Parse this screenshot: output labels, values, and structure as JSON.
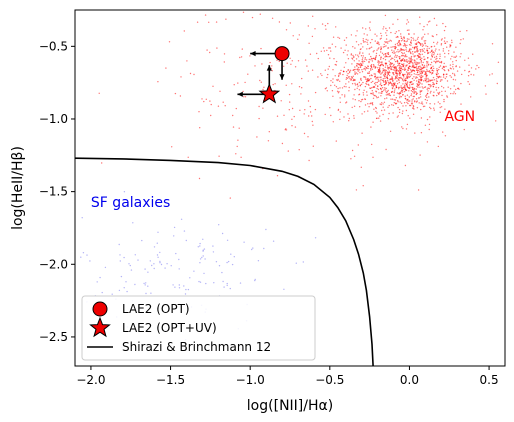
{
  "chart_data": {
    "type": "scatter",
    "xlabel": "log([NII]/Hα)",
    "ylabel": "log(HeII/Hβ)",
    "xlim": [
      -2.1,
      0.6
    ],
    "ylim": [
      -2.7,
      -0.25
    ],
    "xticks": [
      -2.0,
      -1.5,
      -1.0,
      -0.5,
      0.0,
      0.5
    ],
    "xtick_labels": [
      "−2.0",
      "−1.5",
      "−1.0",
      "−0.5",
      "0.0",
      "0.5"
    ],
    "yticks": [
      -2.5,
      -2.0,
      -1.5,
      -1.0,
      -0.5
    ],
    "ytick_labels": [
      "−2.5",
      "−2.0",
      "−1.5",
      "−1.0",
      "−0.5"
    ],
    "grid": false,
    "legend_position": "lower-left",
    "annotations": [
      {
        "text": "AGN",
        "x": 0.22,
        "y": -0.98,
        "color": "#ff0000"
      },
      {
        "text": "SF galaxies",
        "x": -2.0,
        "y": -1.57,
        "color": "#0000ee"
      }
    ],
    "populations": [
      {
        "region": "AGN",
        "color": "#ff0000",
        "center": [
          -0.05,
          -0.67
        ],
        "spread": [
          0.19,
          0.14
        ],
        "count": 1500
      },
      {
        "region": "AGN-halo",
        "color": "#ff0000",
        "center": [
          -0.6,
          -0.75
        ],
        "spread": [
          0.45,
          0.3
        ],
        "count": 300
      },
      {
        "region": "SF",
        "color": "#7777ee",
        "center": [
          -1.45,
          -2.05
        ],
        "spread": [
          0.3,
          0.2
        ],
        "count": 140
      }
    ],
    "series": [
      {
        "name": "LAE2 (OPT)",
        "marker": "circle",
        "color": "#ee0000",
        "points": [
          {
            "x": -0.8,
            "y": -0.55
          }
        ]
      },
      {
        "name": "LAE2 (OPT+UV)",
        "marker": "star",
        "color": "#ee0000",
        "points": [
          {
            "x": -0.88,
            "y": -0.83
          }
        ]
      },
      {
        "name": "Shirazi & Brinchmann 12",
        "marker": "line",
        "color": "#000000"
      }
    ],
    "limit_arrows": [
      {
        "x": -0.8,
        "y": -0.55,
        "dx": -0.2,
        "dy": 0
      },
      {
        "x": -0.8,
        "y": -0.55,
        "dx": 0,
        "dy": -0.18
      },
      {
        "x": -0.88,
        "y": -0.83,
        "dx": -0.2,
        "dy": 0
      },
      {
        "x": -0.88,
        "y": -0.83,
        "dx": 0,
        "dy": 0.2
      }
    ],
    "curve": {
      "name": "Shirazi & Brinchmann 12",
      "x": [
        -2.1,
        -1.8,
        -1.5,
        -1.2,
        -1.0,
        -0.8,
        -0.7,
        -0.6,
        -0.5,
        -0.45,
        -0.4,
        -0.35,
        -0.32,
        -0.29,
        -0.27,
        -0.25,
        -0.235,
        -0.228
      ],
      "y": [
        -1.27,
        -1.275,
        -1.285,
        -1.3,
        -1.32,
        -1.36,
        -1.395,
        -1.45,
        -1.54,
        -1.61,
        -1.7,
        -1.83,
        -1.93,
        -2.06,
        -2.18,
        -2.36,
        -2.55,
        -2.7
      ]
    }
  }
}
